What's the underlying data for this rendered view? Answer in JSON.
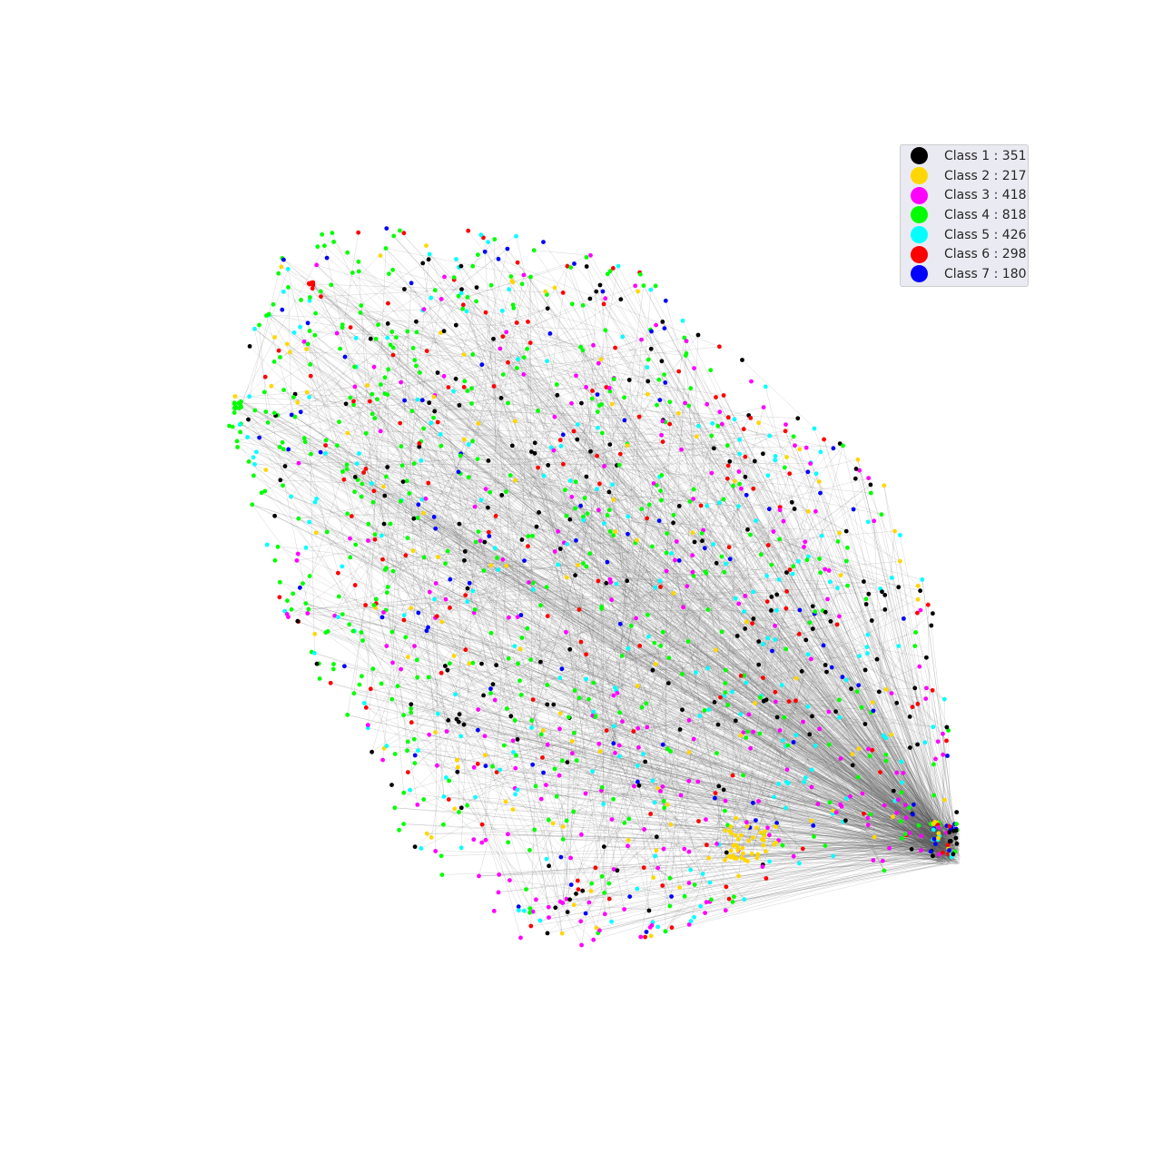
{
  "legend": {
    "items": [
      {
        "label": "Class 1 : 351",
        "color": "#000000"
      },
      {
        "label": "Class 2 : 217",
        "color": "#ffd700"
      },
      {
        "label": "Class 3 : 418",
        "color": "#ff00ff"
      },
      {
        "label": "Class 4 : 818",
        "color": "#00ff00"
      },
      {
        "label": "Class 5 : 426",
        "color": "#00ffff"
      },
      {
        "label": "Class 6 : 298",
        "color": "#ff0000"
      },
      {
        "label": "Class 7 : 180",
        "color": "#0000ff"
      }
    ]
  },
  "edge_color": "#555555"
}
